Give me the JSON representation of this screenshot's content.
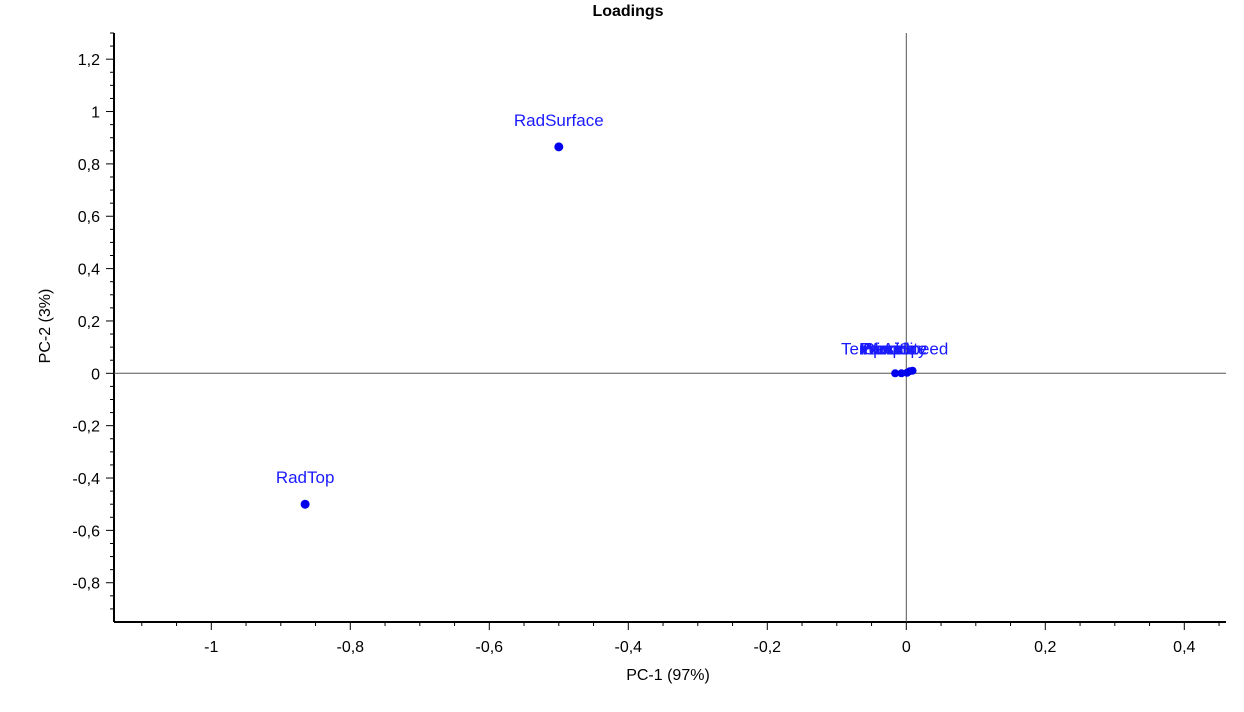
{
  "chart_data": {
    "type": "scatter",
    "title": "Loadings",
    "xlabel": "PC-1 (97%)",
    "ylabel": "PC-2 (3%)",
    "xlim": [
      -1.14,
      0.46
    ],
    "ylim": [
      -0.95,
      1.3
    ],
    "x_ticks": [
      -1,
      -0.8,
      -0.6,
      -0.4,
      -0.2,
      0,
      0.2,
      0.4
    ],
    "x_tick_labels": [
      "-1",
      "-0,8",
      "-0,6",
      "-0,4",
      "-0,2",
      "0",
      "0,2",
      "0,4"
    ],
    "y_ticks": [
      -0.8,
      -0.6,
      -0.4,
      -0.2,
      0,
      0.2,
      0.4,
      0.6,
      0.8,
      1,
      1.2
    ],
    "y_tick_labels": [
      "-0,8",
      "-0,6",
      "-0,4",
      "-0,2",
      "0",
      "0,2",
      "0,4",
      "0,6",
      "0,8",
      "1",
      "1,2"
    ],
    "zero_lines": true,
    "point_color": "#0000ee",
    "label_color": "#1a1aff",
    "points": [
      {
        "label": "RadSurface",
        "x": -0.5,
        "y": 0.865,
        "label_anchor": "middle"
      },
      {
        "label": "RadTop",
        "x": -0.865,
        "y": -0.5,
        "label_anchor": "middle"
      }
    ],
    "cluster": {
      "points": [
        {
          "x": -0.016,
          "y": 0.0
        },
        {
          "x": -0.007,
          "y": 0.0
        },
        {
          "x": 0.001,
          "y": 0.002
        },
        {
          "x": 0.005,
          "y": 0.008
        },
        {
          "x": 0.009,
          "y": 0.01
        }
      ],
      "labels": [
        "TempAir",
        "Temp",
        "Pressure",
        "Humidity",
        "WindSpeed",
        "Clouds"
      ],
      "label_x": [
        -0.094,
        -0.066,
        -0.068,
        -0.066,
        -0.066,
        -0.063
      ],
      "label_y": 0.095
    }
  }
}
